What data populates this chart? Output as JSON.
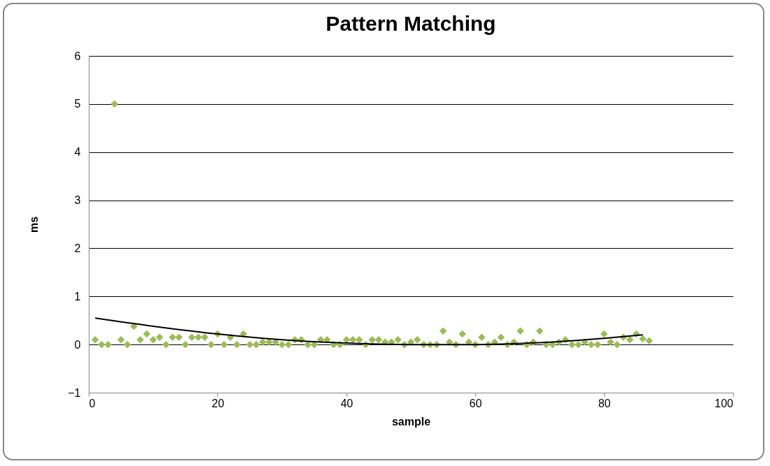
{
  "chart_data": {
    "type": "scatter",
    "title": "Pattern Matching",
    "xlabel": "sample",
    "ylabel": "ms",
    "xlim": [
      0,
      100
    ],
    "xticks": [
      0,
      20,
      40,
      60,
      80,
      100
    ],
    "ylim": [
      -1,
      6
    ],
    "yticks": [
      -1,
      0,
      1,
      2,
      3,
      4,
      5,
      6
    ],
    "grid": "y",
    "series": [
      {
        "marker": "diamond",
        "color": "#9bbb59",
        "x": [
          1,
          2,
          3,
          4,
          5,
          6,
          7,
          8,
          9,
          10,
          11,
          12,
          13,
          14,
          15,
          16,
          17,
          18,
          19,
          20,
          21,
          22,
          23,
          24,
          25,
          26,
          27,
          28,
          29,
          30,
          31,
          32,
          33,
          34,
          35,
          36,
          37,
          38,
          39,
          40,
          41,
          42,
          43,
          44,
          45,
          46,
          47,
          48,
          49,
          50,
          51,
          52,
          53,
          54,
          55,
          56,
          57,
          58,
          59,
          60,
          61,
          62,
          63,
          64,
          65,
          66,
          67,
          68,
          69,
          70,
          71,
          72,
          73,
          74,
          75,
          76,
          77,
          78,
          79,
          80,
          81,
          82,
          83,
          84,
          85,
          86,
          87
        ],
        "values": [
          0.1,
          0,
          0,
          5,
          0.1,
          0,
          0.38,
          0.1,
          0.22,
          0.1,
          0.15,
          0,
          0.15,
          0.15,
          0,
          0.15,
          0.15,
          0.15,
          0,
          0.22,
          0,
          0.15,
          0,
          0.22,
          0,
          0,
          0.05,
          0.05,
          0.05,
          0,
          0,
          0.1,
          0.1,
          0,
          0,
          0.1,
          0.1,
          0,
          0,
          0.1,
          0.1,
          0.1,
          0,
          0.1,
          0.1,
          0.05,
          0.05,
          0.1,
          0,
          0.05,
          0.1,
          0,
          0,
          0,
          0.28,
          0.05,
          0,
          0.22,
          0.05,
          0,
          0.15,
          0,
          0.05,
          0.15,
          0,
          0.05,
          0.28,
          0,
          0.05,
          0.28,
          0,
          0,
          0.05,
          0.1,
          0,
          0,
          0.05,
          0,
          0,
          0.22,
          0.05,
          0,
          0.15,
          0.1,
          0.22,
          0.12,
          0.08
        ]
      },
      {
        "type": "line",
        "marker": "none",
        "line_style": "solid",
        "color": "#000000",
        "x": [
          1,
          10,
          20,
          30,
          40,
          50,
          60,
          70,
          80,
          86
        ],
        "values": [
          0.55,
          0.38,
          0.22,
          0.1,
          0.03,
          0,
          0,
          0.04,
          0.13,
          0.2
        ]
      }
    ]
  }
}
